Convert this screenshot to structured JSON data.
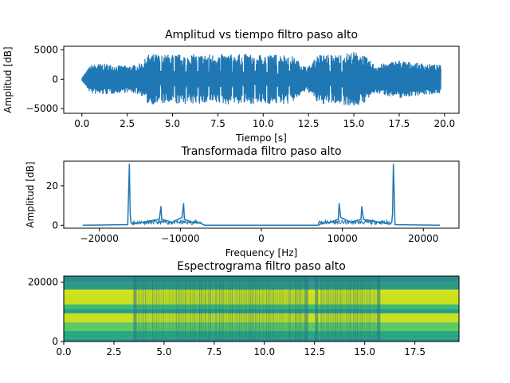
{
  "chart_data": [
    {
      "type": "line",
      "title": "Amplitud vs tiempo filtro paso alto",
      "xlabel": "Tiempo [s]",
      "ylabel": "Amplitud [dB]",
      "xlim": [
        -1.0,
        20.8
      ],
      "ylim": [
        -5800,
        5600
      ],
      "xticks": [
        0.0,
        2.5,
        5.0,
        7.5,
        10.0,
        12.5,
        15.0,
        17.5,
        20.0
      ],
      "xtick_labels": [
        "0.0",
        "2.5",
        "5.0",
        "7.5",
        "10.0",
        "12.5",
        "15.0",
        "17.5",
        "20.0"
      ],
      "yticks": [
        -5000,
        0,
        5000
      ],
      "ytick_labels": [
        "−5000",
        "0",
        "5000"
      ],
      "color": "#1f77b4",
      "series": [
        {
          "x": [
            0.0,
            0.5,
            1.0,
            1.5,
            2.0,
            2.5,
            3.0,
            3.4,
            3.6,
            4.0,
            4.5,
            5.0,
            5.5,
            6.0,
            6.5,
            7.0,
            7.5,
            8.0,
            8.5,
            9.0,
            9.5,
            10.0,
            10.5,
            11.0,
            11.5,
            12.0,
            12.3,
            12.6,
            13.0,
            13.5,
            14.0,
            14.5,
            15.0,
            15.5,
            15.8,
            16.2,
            16.8,
            17.5,
            18.0,
            18.5,
            19.0,
            19.8
          ],
          "envelope": [
            300,
            2500,
            2700,
            2600,
            2400,
            2300,
            2500,
            3000,
            4200,
            4300,
            4200,
            4300,
            4200,
            4300,
            4200,
            4300,
            4200,
            4300,
            4200,
            4300,
            4200,
            4300,
            4200,
            4300,
            4200,
            3000,
            2200,
            2400,
            4200,
            4300,
            4200,
            4400,
            4700,
            4300,
            3400,
            2400,
            2800,
            3300,
            3000,
            2800,
            2700,
            2400
          ]
        }
      ]
    },
    {
      "type": "line",
      "title": "Transformada filtro paso alto",
      "xlabel": "Frequency [Hz]",
      "ylabel": "Amplitud [dB]",
      "xlim": [
        -24400,
        24400
      ],
      "ylim": [
        -1.5,
        32.5
      ],
      "xticks": [
        -20000,
        -10000,
        0,
        10000,
        20000
      ],
      "xtick_labels": [
        "−20000",
        "−10000",
        "0",
        "10000",
        "20000"
      ],
      "yticks": [
        0,
        20
      ],
      "ytick_labels": [
        "0",
        "20"
      ],
      "color": "#1f77b4",
      "series": [
        {
          "x": [
            -22050,
            -16500,
            -16300,
            -16200,
            -16100,
            -15900,
            -14000,
            -12600,
            -12400,
            -12300,
            -11000,
            -9800,
            -9600,
            -9500,
            -8500,
            -7500,
            -7000,
            7000,
            7500,
            8500,
            9500,
            9600,
            9800,
            11000,
            12300,
            12400,
            12600,
            14000,
            15900,
            16100,
            16200,
            16300,
            16500,
            22050
          ],
          "y": [
            0,
            0.3,
            31,
            6,
            1.5,
            0.5,
            2,
            3,
            9.5,
            3,
            1.5,
            4,
            11,
            3,
            1.5,
            1,
            0,
            0,
            1,
            1.5,
            3,
            11,
            4,
            1.5,
            3,
            9.5,
            3,
            2,
            0.5,
            1.5,
            6,
            31,
            0.3,
            0
          ]
        }
      ]
    },
    {
      "type": "heatmap",
      "title": "Espectrograma filtro paso alto",
      "xlabel": "",
      "ylabel": "",
      "xlim": [
        0,
        19.7
      ],
      "ylim": [
        0,
        22050
      ],
      "xticks": [
        0.0,
        2.5,
        5.0,
        7.5,
        10.0,
        12.5,
        15.0,
        17.5
      ],
      "xtick_labels": [
        "0.0",
        "2.5",
        "5.0",
        "7.5",
        "10.0",
        "12.5",
        "15.0",
        "17.5"
      ],
      "yticks": [
        0,
        20000
      ],
      "ytick_labels": [
        "0",
        "20000"
      ],
      "colormap": "viridis",
      "bands": [
        {
          "from": 0,
          "to": 1000,
          "color": "#2f8f8a"
        },
        {
          "from": 1000,
          "to": 3500,
          "color": "#26a884"
        },
        {
          "from": 3500,
          "to": 6500,
          "color": "#5ec962"
        },
        {
          "from": 6500,
          "to": 9500,
          "color": "#c8e020"
        },
        {
          "from": 9500,
          "to": 11000,
          "color": "#2a9e84"
        },
        {
          "from": 11000,
          "to": 12500,
          "color": "#3dbc74"
        },
        {
          "from": 12500,
          "to": 16000,
          "color": "#c8e020"
        },
        {
          "from": 16000,
          "to": 17500,
          "color": "#d5e21a"
        },
        {
          "from": 17500,
          "to": 20000,
          "color": "#2c9a85"
        },
        {
          "from": 20000,
          "to": 22050,
          "color": "#2a8e8c"
        }
      ]
    }
  ]
}
